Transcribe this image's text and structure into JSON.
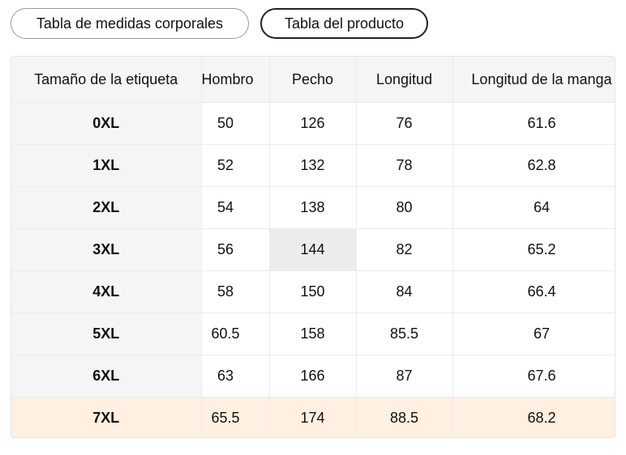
{
  "tabs": [
    "Tabla de medidas corporales",
    "Tabla del producto"
  ],
  "table": {
    "header": [
      "Tamaño de la etiqueta",
      "Hombro",
      "Pecho",
      "Longitud",
      "Longitud de la manga"
    ],
    "rows": [
      [
        "0XL",
        "50",
        "126",
        "76",
        "61.6"
      ],
      [
        "1XL",
        "52",
        "132",
        "78",
        "62.8"
      ],
      [
        "2XL",
        "54",
        "138",
        "80",
        "64"
      ],
      [
        "3XL",
        "56",
        "144",
        "82",
        "65.2"
      ],
      [
        "4XL",
        "58",
        "150",
        "84",
        "66.4"
      ],
      [
        "5XL",
        "60.5",
        "158",
        "85.5",
        "67"
      ],
      [
        "6XL",
        "63",
        "166",
        "87",
        "67.6"
      ],
      [
        "7XL",
        "65.5",
        "174",
        "88.5",
        "68.2"
      ]
    ]
  }
}
